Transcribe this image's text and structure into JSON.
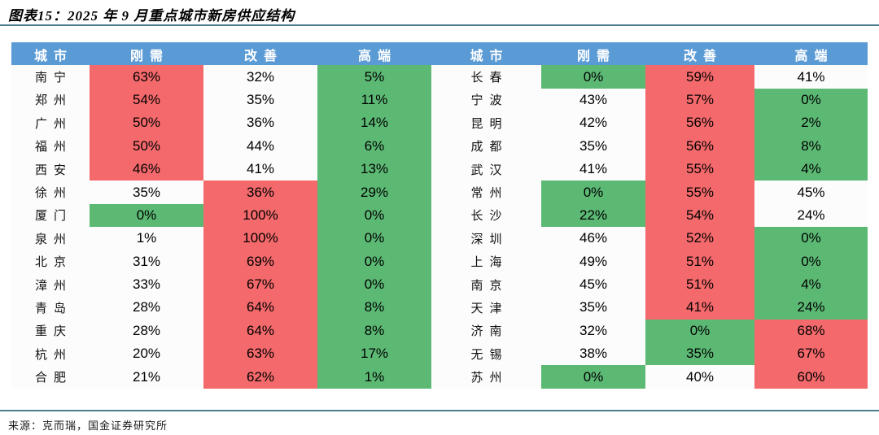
{
  "title": "图表15：2025 年 9 月重点城市新房供应结构",
  "source": "来源：克而瑞，国金证券研究所",
  "colors": {
    "header_bg": "#5B9BD5",
    "header_text": "#FFFFFF",
    "cell_red": "#F4696B",
    "cell_green": "#5CB974",
    "cell_neutral": "#FCFCFD",
    "divider": "#4C7D8E"
  },
  "chart_data": {
    "type": "table",
    "title": "2025年9月重点城市新房供应结构",
    "columns": [
      "城市",
      "刚需",
      "改善",
      "高端"
    ],
    "unit": "%",
    "legend_note": "red = highest-share segment, green = lowest-share segment",
    "left_rows": [
      {
        "city": "南宁",
        "values": [
          63,
          32,
          5
        ],
        "fills": [
          "red",
          "neutral",
          "green"
        ]
      },
      {
        "city": "郑州",
        "values": [
          54,
          35,
          11
        ],
        "fills": [
          "red",
          "neutral",
          "green"
        ]
      },
      {
        "city": "广州",
        "values": [
          50,
          36,
          14
        ],
        "fills": [
          "red",
          "neutral",
          "green"
        ]
      },
      {
        "city": "福州",
        "values": [
          50,
          44,
          6
        ],
        "fills": [
          "red",
          "neutral",
          "green"
        ]
      },
      {
        "city": "西安",
        "values": [
          46,
          41,
          13
        ],
        "fills": [
          "red",
          "neutral",
          "green"
        ]
      },
      {
        "city": "徐州",
        "values": [
          35,
          36,
          29
        ],
        "fills": [
          "neutral",
          "red",
          "green"
        ]
      },
      {
        "city": "厦门",
        "values": [
          0,
          100,
          0
        ],
        "fills": [
          "green",
          "red",
          "green"
        ]
      },
      {
        "city": "泉州",
        "values": [
          1,
          100,
          0
        ],
        "fills": [
          "neutral",
          "red",
          "green"
        ]
      },
      {
        "city": "北京",
        "values": [
          31,
          69,
          0
        ],
        "fills": [
          "neutral",
          "red",
          "green"
        ]
      },
      {
        "city": "漳州",
        "values": [
          33,
          67,
          0
        ],
        "fills": [
          "neutral",
          "red",
          "green"
        ]
      },
      {
        "city": "青岛",
        "values": [
          28,
          64,
          8
        ],
        "fills": [
          "neutral",
          "red",
          "green"
        ]
      },
      {
        "city": "重庆",
        "values": [
          28,
          64,
          8
        ],
        "fills": [
          "neutral",
          "red",
          "green"
        ]
      },
      {
        "city": "杭州",
        "values": [
          20,
          63,
          17
        ],
        "fills": [
          "neutral",
          "red",
          "green"
        ]
      },
      {
        "city": "合肥",
        "values": [
          21,
          62,
          1
        ],
        "fills": [
          "neutral",
          "red",
          "green"
        ]
      }
    ],
    "right_rows": [
      {
        "city": "长春",
        "values": [
          0,
          59,
          41
        ],
        "fills": [
          "green",
          "red",
          "neutral"
        ]
      },
      {
        "city": "宁波",
        "values": [
          43,
          57,
          0
        ],
        "fills": [
          "neutral",
          "red",
          "green"
        ]
      },
      {
        "city": "昆明",
        "values": [
          42,
          56,
          2
        ],
        "fills": [
          "neutral",
          "red",
          "green"
        ]
      },
      {
        "city": "成都",
        "values": [
          35,
          56,
          8
        ],
        "fills": [
          "neutral",
          "red",
          "green"
        ]
      },
      {
        "city": "武汉",
        "values": [
          41,
          55,
          4
        ],
        "fills": [
          "neutral",
          "red",
          "green"
        ]
      },
      {
        "city": "常州",
        "values": [
          0,
          55,
          45
        ],
        "fills": [
          "green",
          "red",
          "neutral"
        ]
      },
      {
        "city": "长沙",
        "values": [
          22,
          54,
          24
        ],
        "fills": [
          "green",
          "red",
          "neutral"
        ]
      },
      {
        "city": "深圳",
        "values": [
          46,
          52,
          0
        ],
        "fills": [
          "neutral",
          "red",
          "green"
        ]
      },
      {
        "city": "上海",
        "values": [
          49,
          51,
          0
        ],
        "fills": [
          "neutral",
          "red",
          "green"
        ]
      },
      {
        "city": "南京",
        "values": [
          45,
          51,
          4
        ],
        "fills": [
          "neutral",
          "red",
          "green"
        ]
      },
      {
        "city": "天津",
        "values": [
          35,
          41,
          24
        ],
        "fills": [
          "neutral",
          "red",
          "green"
        ]
      },
      {
        "city": "济南",
        "values": [
          32,
          0,
          68
        ],
        "fills": [
          "neutral",
          "green",
          "red"
        ]
      },
      {
        "city": "无锡",
        "values": [
          38,
          35,
          67
        ],
        "fills": [
          "neutral",
          "green",
          "red"
        ]
      },
      {
        "city": "苏州",
        "values": [
          0,
          40,
          60
        ],
        "fills": [
          "green",
          "neutral",
          "red"
        ]
      }
    ]
  }
}
